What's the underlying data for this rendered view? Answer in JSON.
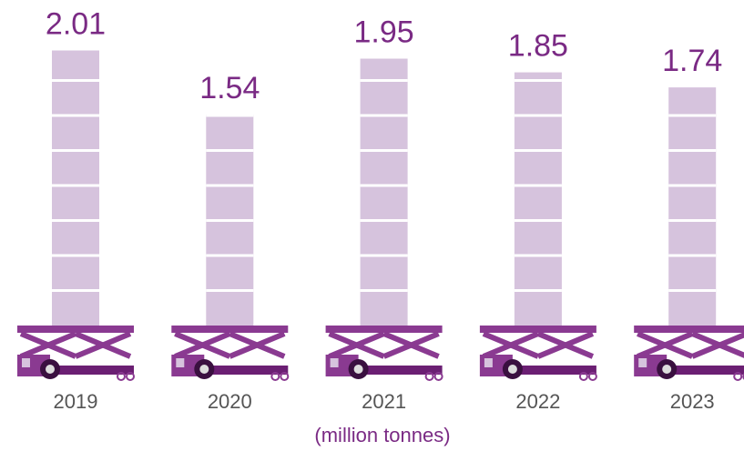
{
  "chart_data": {
    "type": "pictograph-bar",
    "categories": [
      "2019",
      "2020",
      "2021",
      "2022",
      "2023"
    ],
    "values": [
      2.01,
      1.54,
      1.95,
      1.85,
      1.74
    ],
    "color": "#d6c3dd",
    "axis_label": "(million tonnes)"
  }
}
